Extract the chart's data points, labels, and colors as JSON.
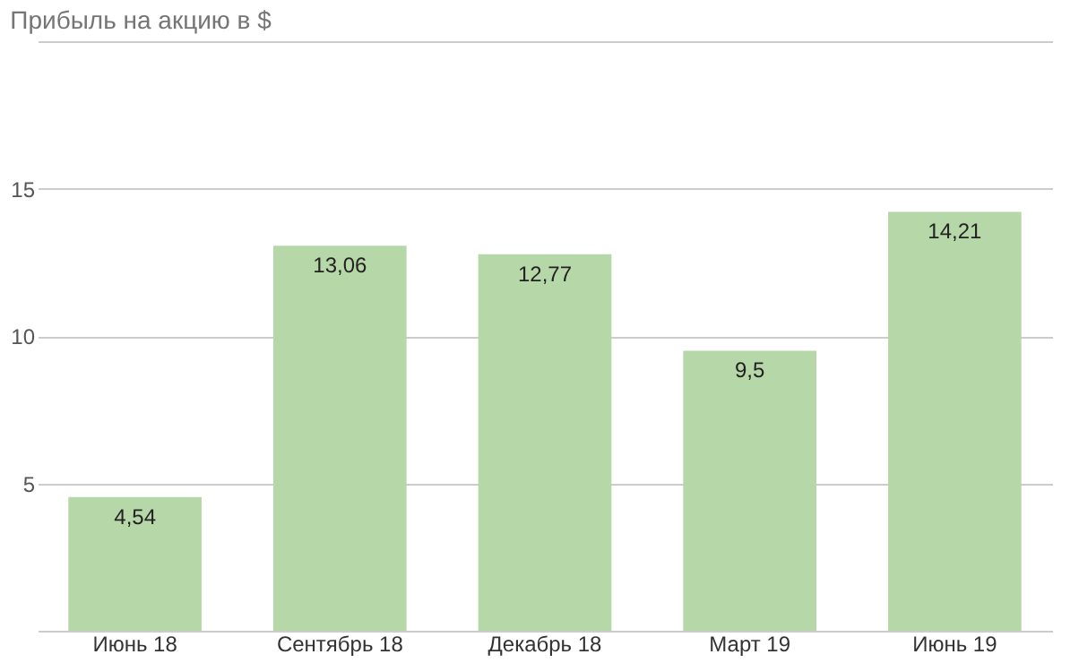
{
  "chart_data": {
    "type": "bar",
    "title": "Прибыль на акцию в $",
    "categories": [
      "Июнь 18",
      "Сентябрь 18",
      "Декабрь 18",
      "Март 19",
      "Июнь 19"
    ],
    "values": [
      4.54,
      13.06,
      12.77,
      9.5,
      14.21
    ],
    "value_labels": [
      "4,54",
      "13,06",
      "12,77",
      "9,5",
      "14,21"
    ],
    "color": "#b6d7a8",
    "ylim": [
      0,
      20
    ],
    "yticks": [
      {
        "value": 0,
        "label": null
      },
      5,
      10,
      15,
      {
        "value": 20,
        "label": null
      }
    ],
    "grid": "y"
  }
}
